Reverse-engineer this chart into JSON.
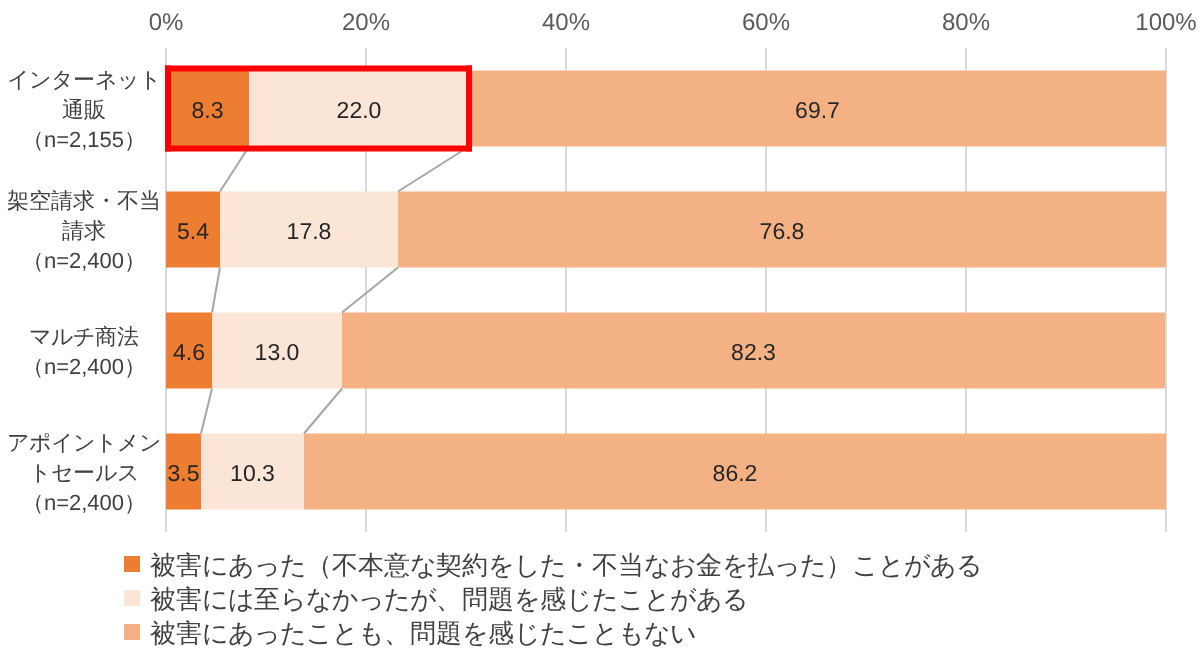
{
  "chart_data": {
    "type": "bar",
    "orientation": "horizontal",
    "stacked": true,
    "grid": "x",
    "legend": "bottom",
    "categories": [
      "インターネット通販（n=2,155）",
      "架空請求・不当請求（n=2,400）",
      "マルチ商法（n=2,400）",
      "アポイントメントセールス（n=2,400）"
    ],
    "series": [
      {
        "name": "被害にあった（不本意な契約をした・不当なお金を払った）ことがある",
        "color": "#ed7d31",
        "values": [
          8.3,
          5.4,
          4.6,
          3.5
        ],
        "value_labels": [
          "8.3",
          "5.4",
          "4.6",
          "3.5"
        ]
      },
      {
        "name": "被害には至らなかったが、問題を感じたことがある",
        "color": "#fbe5d6",
        "values": [
          22.0,
          17.8,
          13.0,
          10.3
        ],
        "value_labels": [
          "22.0",
          "17.8",
          "13.0",
          "10.3"
        ]
      },
      {
        "name": "被害にあったことも、問題を感じたこともない",
        "color": "#f4b183",
        "values": [
          69.7,
          76.8,
          82.3,
          86.2
        ],
        "value_labels": [
          "69.7",
          "76.8",
          "82.3",
          "86.2"
        ]
      }
    ],
    "xlim": [
      0,
      100
    ],
    "xticks": [
      {
        "value": 0,
        "label": "0%"
      },
      {
        "value": 20,
        "label": "20%"
      },
      {
        "value": 40,
        "label": "40%"
      },
      {
        "value": 60,
        "label": "60%"
      },
      {
        "value": 80,
        "label": "80%"
      },
      {
        "value": 100,
        "label": "100%"
      }
    ]
  }
}
